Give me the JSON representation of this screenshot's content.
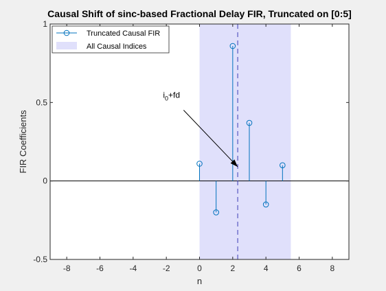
{
  "chart_data": {
    "type": "stem",
    "title": "Causal Shift of sinc-based Fractional Delay FIR, Truncated on [0:5]",
    "xlabel": "n",
    "ylabel": "FIR Coefficients",
    "xlim": [
      -9,
      9
    ],
    "ylim": [
      -0.5,
      1
    ],
    "xticks": [
      -8,
      -6,
      -4,
      -2,
      0,
      2,
      4,
      6,
      8
    ],
    "xtick_labels": [
      "-8",
      "-6",
      "-4",
      "-2",
      "0",
      "2",
      "4",
      "6",
      "8"
    ],
    "yticks": [
      -0.5,
      0,
      0.5,
      1
    ],
    "ytick_labels": [
      "-0.5",
      "0",
      "0.5",
      "1"
    ],
    "grid": false,
    "series": [
      {
        "name": "Truncated Causal FIR",
        "color": "#0072BD",
        "marker": "circle",
        "x": [
          0,
          1,
          2,
          3,
          4,
          5
        ],
        "y": [
          0.11,
          -0.2,
          0.86,
          0.37,
          -0.15,
          0.1
        ]
      }
    ],
    "shaded_region": {
      "name": "All Causal Indices",
      "x_from": 0,
      "x_to": 5.5,
      "color": "#e0e0fb"
    },
    "vertical_line": {
      "x": 2.3,
      "style": "dashed",
      "color": "#3c3cb4"
    },
    "annotation": {
      "text_main": "i",
      "text_sub": "0",
      "text_tail": "+fd",
      "text_x": -2.2,
      "text_y": 0.53,
      "arrow_to_x": 2.3,
      "arrow_to_y": 0.09
    },
    "legend": {
      "position": "top-left"
    }
  }
}
